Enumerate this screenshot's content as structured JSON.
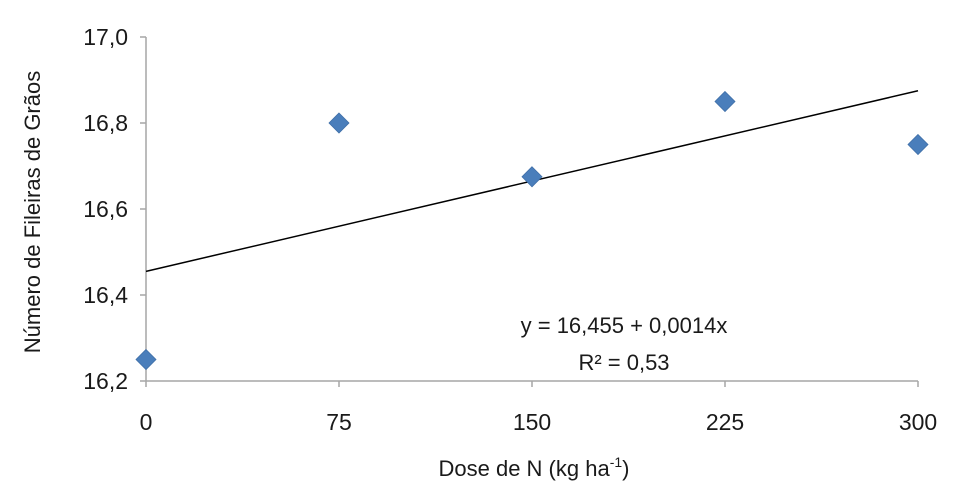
{
  "chart_data": {
    "type": "scatter",
    "xlabel": "Dose de N (kg ha",
    "xlabel_superscript": "-1",
    "xlabel_suffix": ")",
    "ylabel": "Número de Fileiras de Grãos",
    "xlim": [
      0,
      300
    ],
    "ylim": [
      16.2,
      17.0
    ],
    "x_ticks": [
      0,
      75,
      150,
      225,
      300
    ],
    "x_tick_labels": [
      "0",
      "75",
      "150",
      "225",
      "300"
    ],
    "y_ticks": [
      16.2,
      16.4,
      16.6,
      16.8,
      17.0
    ],
    "y_tick_labels": [
      "16,2",
      "16,4",
      "16,6",
      "16,8",
      "17,0"
    ],
    "grid": false,
    "series": [
      {
        "x": [
          0,
          75,
          150,
          225,
          300
        ],
        "y": [
          16.25,
          16.8,
          16.675,
          16.85,
          16.75
        ],
        "marker": "diamond",
        "color": "#4a7ebb"
      }
    ],
    "trendline": {
      "intercept": 16.455,
      "slope": 0.0014,
      "color": "#000000"
    },
    "annotations": {
      "equation": "y = 16,455  + 0,0014x",
      "r_squared": "R² = 0,53"
    }
  }
}
